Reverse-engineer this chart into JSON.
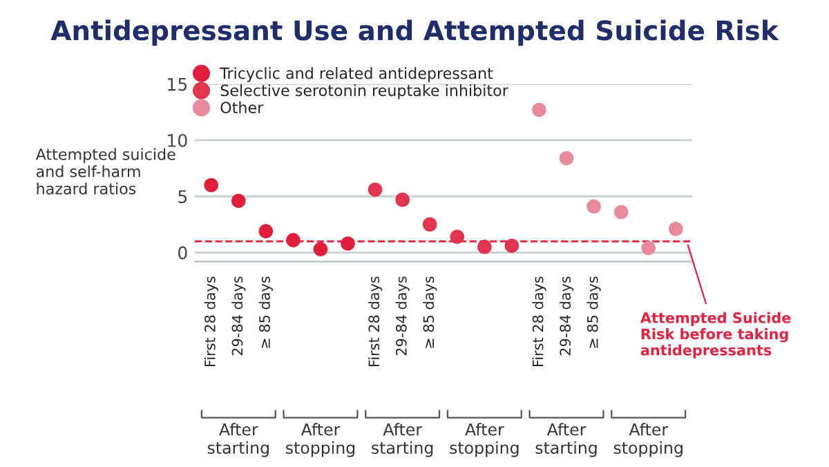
{
  "chart_data": {
    "type": "scatter",
    "title": "Antidepressant Use and Attempted Suicide Risk",
    "ylabel": "Attempted suicide\nand self-harm\nhazard ratios",
    "categories": [
      "First 28 days",
      "29-84 days",
      "≥ 85 days",
      null,
      null,
      null,
      "First 28 days",
      "29-84 days",
      "≥ 85 days",
      null,
      null,
      null,
      "First 28 days",
      "29-84 days",
      "≥ 85 days",
      null,
      null,
      null
    ],
    "series": [
      {
        "name": "Tricyclic and related antidepressant",
        "color": "#e01e3c",
        "values": [
          6.0,
          4.6,
          1.9,
          1.1,
          0.3,
          0.8,
          null,
          null,
          null,
          null,
          null,
          null,
          null,
          null,
          null,
          null,
          null,
          null
        ]
      },
      {
        "name": "Selective serotonin reuptake inhibitor",
        "color": "#e2334f",
        "values": [
          null,
          null,
          null,
          null,
          null,
          null,
          5.6,
          4.7,
          2.5,
          1.4,
          0.5,
          0.6,
          null,
          null,
          null,
          null,
          null,
          null
        ]
      },
      {
        "name": "Other",
        "color": "#e88a99",
        "values": [
          null,
          null,
          null,
          null,
          null,
          null,
          null,
          null,
          null,
          null,
          null,
          null,
          12.7,
          8.4,
          4.1,
          3.6,
          0.4,
          2.1
        ]
      }
    ],
    "ylim": [
      -0.8,
      15
    ],
    "yticks": [
      0,
      5,
      10,
      15
    ],
    "grid": "y",
    "legend": "top left",
    "marker": "circle",
    "ref_lines": [
      {
        "axis": "y",
        "value": 1,
        "label": "Attempted Suicide\nRisk before taking\nantidepressants",
        "color": "#e8203f",
        "line_style": "dashed"
      }
    ],
    "annotations": [
      "After\nstarting",
      "After\nstopping",
      "After\nstarting",
      "After\nstopping",
      "After\nstarting",
      "After\nstopping"
    ]
  }
}
